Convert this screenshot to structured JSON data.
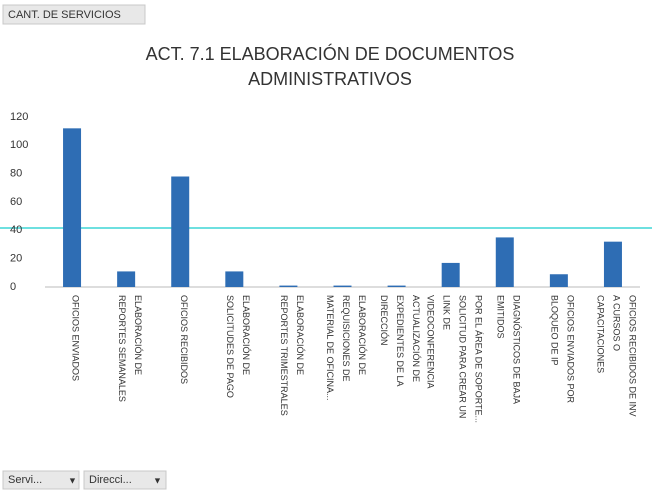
{
  "header": {
    "button": "CANT. DE SERVICIOS"
  },
  "chart_data": {
    "type": "bar",
    "title": [
      "ACT. 7.1  ELABORACIÓN DE DOCUMENTOS",
      "ADMINISTRATIVOS"
    ],
    "categories": [
      [
        "OFICIOS ENVIADOS"
      ],
      [
        "ELABORACIÓN DE",
        "REPORTES SEMANALES"
      ],
      [
        "OFICIOS RECIBIDOS"
      ],
      [
        "ELABORACIÓN DE",
        "SOLICITUDES DE PAGO"
      ],
      [
        "ELABORACIÓN DE",
        "REPORTES TRIMESTRALES"
      ],
      [
        "ELABORACIÓN DE",
        "REQUISICIONES DE",
        "MATERIAL DE OFICINA..."
      ],
      [
        "ACTUALIZACIÓN DE",
        "EXPEDIENTES DE LA",
        "DIRECCIÓN"
      ],
      [
        "POR EL ÁREA DE SOPORTE...",
        "SOLICITUD PARA CREAR UN",
        "LINK DE",
        "VIDEOCONFERENCIA"
      ],
      [
        "DIAGNÓSTICOS DE BAJA",
        "EMITIDOS"
      ],
      [
        "OFICIOS ENVIADOS POR",
        "BLOQUEO DE IP"
      ],
      [
        "OFICIOS RECIBIDOS DE INV",
        "A CURSOS O",
        "CAPACITACIONES"
      ]
    ],
    "values": [
      112,
      11,
      78,
      11,
      1,
      1,
      1,
      17,
      35,
      9,
      32
    ],
    "color": "#2e6db4",
    "ylim": [
      0,
      120
    ],
    "yticks": [
      0,
      20,
      40,
      60,
      80,
      100,
      120
    ],
    "grid": false
  },
  "filters": [
    "Servi...",
    "Direcci..."
  ]
}
